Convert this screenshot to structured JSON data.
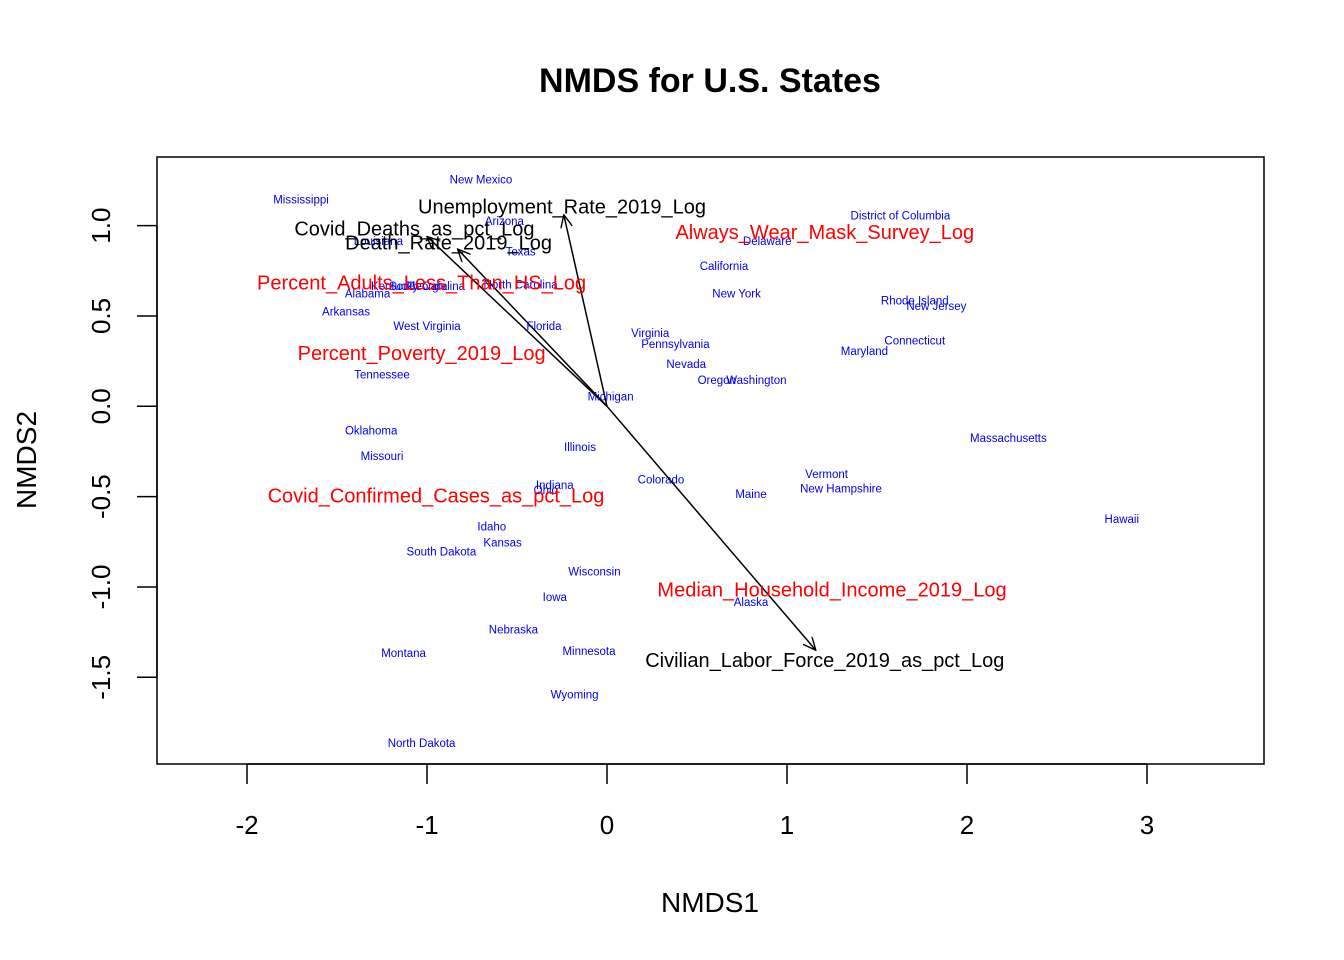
{
  "chart_data": {
    "type": "scatter",
    "title": "NMDS for U.S. States",
    "xlabel": "NMDS1",
    "ylabel": "NMDS2",
    "xlim": [
      -2.5,
      3.65
    ],
    "ylim": [
      -1.98,
      1.38
    ],
    "x_ticks": [
      -2,
      -1,
      0,
      1,
      2,
      3
    ],
    "y_ticks": [
      -1.5,
      -1.0,
      -0.5,
      0.0,
      0.5,
      1.0
    ],
    "x_tick_labels": [
      "-2",
      "-1",
      "0",
      "1",
      "2",
      "3"
    ],
    "y_tick_labels": [
      "-1.5",
      "-1.0",
      "-0.5",
      "0.0",
      "0.5",
      "1.0"
    ],
    "grid": false,
    "legend": "none",
    "colors": {
      "states": "#0000ee",
      "black_vectors": "#000000",
      "red_vectors": "#ff0000"
    },
    "states": [
      {
        "name": "Mississippi",
        "x": -1.7,
        "y": 1.14
      },
      {
        "name": "New Mexico",
        "x": -0.7,
        "y": 1.25
      },
      {
        "name": "Arizona",
        "x": -0.57,
        "y": 1.02
      },
      {
        "name": "Louisiana",
        "x": -1.27,
        "y": 0.91
      },
      {
        "name": "Texas",
        "x": -0.48,
        "y": 0.85
      },
      {
        "name": "Kentucky",
        "x": -1.18,
        "y": 0.66
      },
      {
        "name": "Georgia",
        "x": -1.0,
        "y": 0.66
      },
      {
        "name": "South Carolina",
        "x": -1.0,
        "y": 0.66
      },
      {
        "name": "North Carolina",
        "x": -0.48,
        "y": 0.67
      },
      {
        "name": "Alabama",
        "x": -1.33,
        "y": 0.62
      },
      {
        "name": "Arkansas",
        "x": -1.45,
        "y": 0.52
      },
      {
        "name": "West Virginia",
        "x": -1.0,
        "y": 0.44
      },
      {
        "name": "Florida",
        "x": -0.35,
        "y": 0.44
      },
      {
        "name": "Tennessee",
        "x": -1.25,
        "y": 0.17
      },
      {
        "name": "Michigan",
        "x": 0.02,
        "y": 0.05
      },
      {
        "name": "Oklahoma",
        "x": -1.31,
        "y": -0.14
      },
      {
        "name": "Missouri",
        "x": -1.25,
        "y": -0.28
      },
      {
        "name": "Illinois",
        "x": -0.15,
        "y": -0.23
      },
      {
        "name": "Indiana",
        "x": -0.29,
        "y": -0.44
      },
      {
        "name": "Ohio",
        "x": -0.34,
        "y": -0.47
      },
      {
        "name": "Colorado",
        "x": 0.3,
        "y": -0.41
      },
      {
        "name": "Idaho",
        "x": -0.64,
        "y": -0.67
      },
      {
        "name": "Kansas",
        "x": -0.58,
        "y": -0.76
      },
      {
        "name": "South Dakota",
        "x": -0.92,
        "y": -0.81
      },
      {
        "name": "Wisconsin",
        "x": -0.07,
        "y": -0.92
      },
      {
        "name": "Iowa",
        "x": -0.29,
        "y": -1.06
      },
      {
        "name": "Nebraska",
        "x": -0.52,
        "y": -1.24
      },
      {
        "name": "Minnesota",
        "x": -0.1,
        "y": -1.36
      },
      {
        "name": "Montana",
        "x": -1.13,
        "y": -1.37
      },
      {
        "name": "Wyoming",
        "x": -0.18,
        "y": -1.6
      },
      {
        "name": "North Dakota",
        "x": -1.03,
        "y": -1.87
      },
      {
        "name": "Delaware",
        "x": 0.89,
        "y": 0.91
      },
      {
        "name": "California",
        "x": 0.65,
        "y": 0.77
      },
      {
        "name": "New York",
        "x": 0.72,
        "y": 0.62
      },
      {
        "name": "Virginia",
        "x": 0.24,
        "y": 0.4
      },
      {
        "name": "Pennsylvania",
        "x": 0.38,
        "y": 0.34
      },
      {
        "name": "Nevada",
        "x": 0.44,
        "y": 0.23
      },
      {
        "name": "Oregon",
        "x": 0.61,
        "y": 0.14
      },
      {
        "name": "Washington",
        "x": 0.83,
        "y": 0.14
      },
      {
        "name": "District of Columbia",
        "x": 1.63,
        "y": 1.05
      },
      {
        "name": "Rhode Island",
        "x": 1.71,
        "y": 0.58
      },
      {
        "name": "New Jersey",
        "x": 1.83,
        "y": 0.55
      },
      {
        "name": "Connecticut",
        "x": 1.71,
        "y": 0.36
      },
      {
        "name": "Maryland",
        "x": 1.43,
        "y": 0.3
      },
      {
        "name": "Massachusetts",
        "x": 2.23,
        "y": -0.18
      },
      {
        "name": "Vermont",
        "x": 1.22,
        "y": -0.38
      },
      {
        "name": "New Hampshire",
        "x": 1.3,
        "y": -0.46
      },
      {
        "name": "Maine",
        "x": 0.8,
        "y": -0.49
      },
      {
        "name": "Hawaii",
        "x": 2.86,
        "y": -0.63
      },
      {
        "name": "Alaska",
        "x": 0.8,
        "y": -1.09
      }
    ],
    "vectors": [
      {
        "name": "Unemployment_Rate_2019_Log",
        "x": -0.24,
        "y": 1.06,
        "label_x": -0.25,
        "label_y": 1.1,
        "color": "#000000",
        "arrow": true
      },
      {
        "name": "Covid_Deaths_as_pct_Log",
        "x": -1.0,
        "y": 0.94,
        "label_x": -1.07,
        "label_y": 0.98,
        "color": "#000000",
        "arrow": true
      },
      {
        "name": "Death_Rate_2019_Log",
        "x": -0.83,
        "y": 0.87,
        "label_x": -0.88,
        "label_y": 0.9,
        "color": "#000000",
        "arrow": true
      },
      {
        "name": "Civilian_Labor_Force_2019_as_pct_Log",
        "x": 1.16,
        "y": -1.35,
        "label_x": 1.21,
        "label_y": -1.41,
        "color": "#000000",
        "arrow": true
      },
      {
        "name": "Always_Wear_Mask_Survey_Log",
        "x": 1.21,
        "y": 0.96,
        "label_x": 1.21,
        "label_y": 0.96,
        "color": "#ff0000",
        "arrow": false
      },
      {
        "name": "Percent_Adults_Less_Than_HS_Log",
        "x": -1.03,
        "y": 0.68,
        "label_x": -1.03,
        "label_y": 0.68,
        "color": "#ff0000",
        "arrow": false
      },
      {
        "name": "Percent_Poverty_2019_Log",
        "x": -1.03,
        "y": 0.29,
        "label_x": -1.03,
        "label_y": 0.29,
        "color": "#ff0000",
        "arrow": false
      },
      {
        "name": "Covid_Confirmed_Cases_as_pct_Log",
        "x": -0.95,
        "y": -0.5,
        "label_x": -0.95,
        "label_y": -0.5,
        "color": "#ff0000",
        "arrow": false
      },
      {
        "name": "Median_Household_Income_2019_Log",
        "x": 1.25,
        "y": -1.02,
        "label_x": 1.25,
        "label_y": -1.02,
        "color": "#ff0000",
        "arrow": false
      }
    ]
  }
}
